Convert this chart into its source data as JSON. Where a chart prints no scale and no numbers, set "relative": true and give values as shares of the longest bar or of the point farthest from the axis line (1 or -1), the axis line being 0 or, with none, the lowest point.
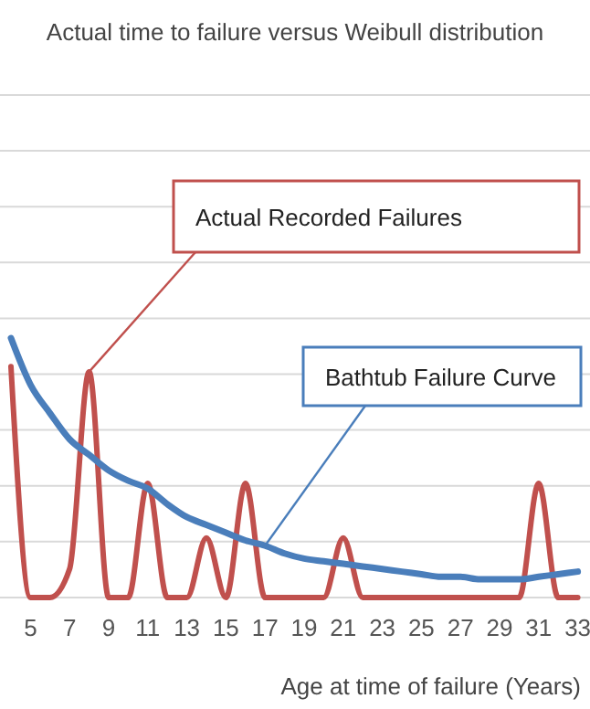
{
  "chart_data": {
    "type": "line",
    "relative": true,
    "title": "Actual time to failure versus Weibull distribution",
    "xlabel": "Age at time of failure (Years)",
    "grid": "y",
    "line_style": "solid",
    "categories": [
      null,
      "5",
      null,
      "7",
      null,
      "9",
      null,
      "11",
      null,
      "13",
      null,
      "15",
      null,
      "17",
      null,
      "19",
      null,
      "21",
      null,
      "23",
      null,
      "25",
      null,
      "27",
      null,
      "29",
      null,
      "31",
      null,
      "33"
    ],
    "series": [
      {
        "color": "#c0504d",
        "values": [
          0.89,
          0,
          0,
          0.11,
          0.87,
          0,
          0,
          0.44,
          0,
          0,
          0.23,
          0,
          0.44,
          0,
          0,
          0,
          0,
          0.23,
          0,
          0,
          0,
          0,
          0,
          0,
          0,
          0,
          0,
          0.44,
          0,
          0
        ]
      },
      {
        "color": "#4a7ebb",
        "values": [
          1,
          0.82,
          0.71,
          0.61,
          0.55,
          0.49,
          0.45,
          0.42,
          0.36,
          0.31,
          0.28,
          0.25,
          0.22,
          0.2,
          0.17,
          0.15,
          0.14,
          0.13,
          0.12,
          0.11,
          0.1,
          0.09,
          0.08,
          0.08,
          0.07,
          0.07,
          0.07,
          0.08,
          0.09,
          0.1
        ]
      }
    ],
    "annotations": [
      "Actual Recorded Failures",
      "Bathtub Failure Curve"
    ]
  }
}
